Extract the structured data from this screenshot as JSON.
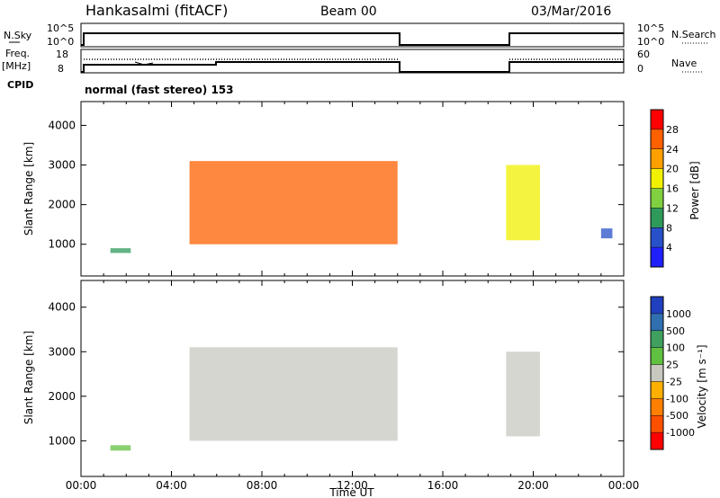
{
  "header": {
    "station": "Hankasalmi (fitACF)",
    "beam": "Beam 00",
    "date": "03/Mar/2016",
    "mode": "normal (fast stereo) 153"
  },
  "summary_panels": {
    "nsky_label": "N.Sky",
    "nsearch_label": "N.Search",
    "freq_label_top": "Freq.",
    "freq_label_bottom": "[MHz]",
    "nave_label": "Nave",
    "cpid_label": "CPID",
    "ticks": {
      "nsky_top": "10^5",
      "nsky_bottom": "10^0",
      "nsearch_top": "10^5",
      "nsearch_bottom": "10^0",
      "freq_top": "18",
      "freq_bottom": "8",
      "nave_top": "60",
      "nave_bottom": "0"
    }
  },
  "chart_data": [
    {
      "type": "heatmap",
      "title": "",
      "xlabel": "",
      "ylabel": "Slant Range [km]",
      "xlim": [
        0,
        24
      ],
      "ylim": [
        200,
        4600
      ],
      "yticks": [
        "1000",
        "2000",
        "3000",
        "4000"
      ],
      "colorbar": {
        "label": "Power [dB]",
        "ticks": [
          "4",
          "8",
          "12",
          "16",
          "20",
          "24",
          "28"
        ],
        "colors": [
          "#2020ff",
          "#2850c8",
          "#2e9a5a",
          "#80d040",
          "#f0f000",
          "#ffa000",
          "#ff6000",
          "#ff0000"
        ]
      },
      "echo_regions": [
        {
          "t_start": 4.8,
          "t_end": 14.0,
          "range_min_km": 1000,
          "range_max_km": 3100,
          "peak_dB": 28
        },
        {
          "t_start": 18.8,
          "t_end": 20.3,
          "range_min_km": 1100,
          "range_max_km": 3000,
          "peak_dB": 20
        },
        {
          "t_start": 1.3,
          "t_end": 2.2,
          "range_min_km": 780,
          "range_max_km": 900,
          "peak_dB": 8
        },
        {
          "t_start": 23.0,
          "t_end": 23.5,
          "range_min_km": 1150,
          "range_max_km": 1400,
          "peak_dB": 6
        }
      ]
    },
    {
      "type": "heatmap",
      "title": "",
      "xlabel": "Time UT",
      "ylabel": "Slant Range [km]",
      "xlim": [
        0,
        24
      ],
      "ylim": [
        200,
        4600
      ],
      "xticks": [
        "00:00",
        "04:00",
        "08:00",
        "12:00",
        "16:00",
        "20:00",
        "00:00"
      ],
      "yticks": [
        "1000",
        "2000",
        "3000",
        "4000"
      ],
      "colorbar": {
        "label": "Velocity [m s⁻¹]",
        "ticks": [
          "1000",
          "500",
          "100",
          "25",
          "-25",
          "-100",
          "-500",
          "-1000"
        ],
        "colors": [
          "#2040c0",
          "#3070b0",
          "#40a060",
          "#60c040",
          "#c8c8c0",
          "#ffb000",
          "#ff8000",
          "#ff5000",
          "#ff0000"
        ]
      },
      "echo_regions": [
        {
          "t_start": 4.8,
          "t_end": 14.0,
          "range_min_km": 1000,
          "range_max_km": 3100,
          "velocity": 0
        },
        {
          "t_start": 18.8,
          "t_end": 20.3,
          "range_min_km": 1100,
          "range_max_km": 3000,
          "velocity": 0
        },
        {
          "t_start": 1.3,
          "t_end": 2.2,
          "range_min_km": 780,
          "range_max_km": 900,
          "velocity": 80
        }
      ]
    }
  ]
}
